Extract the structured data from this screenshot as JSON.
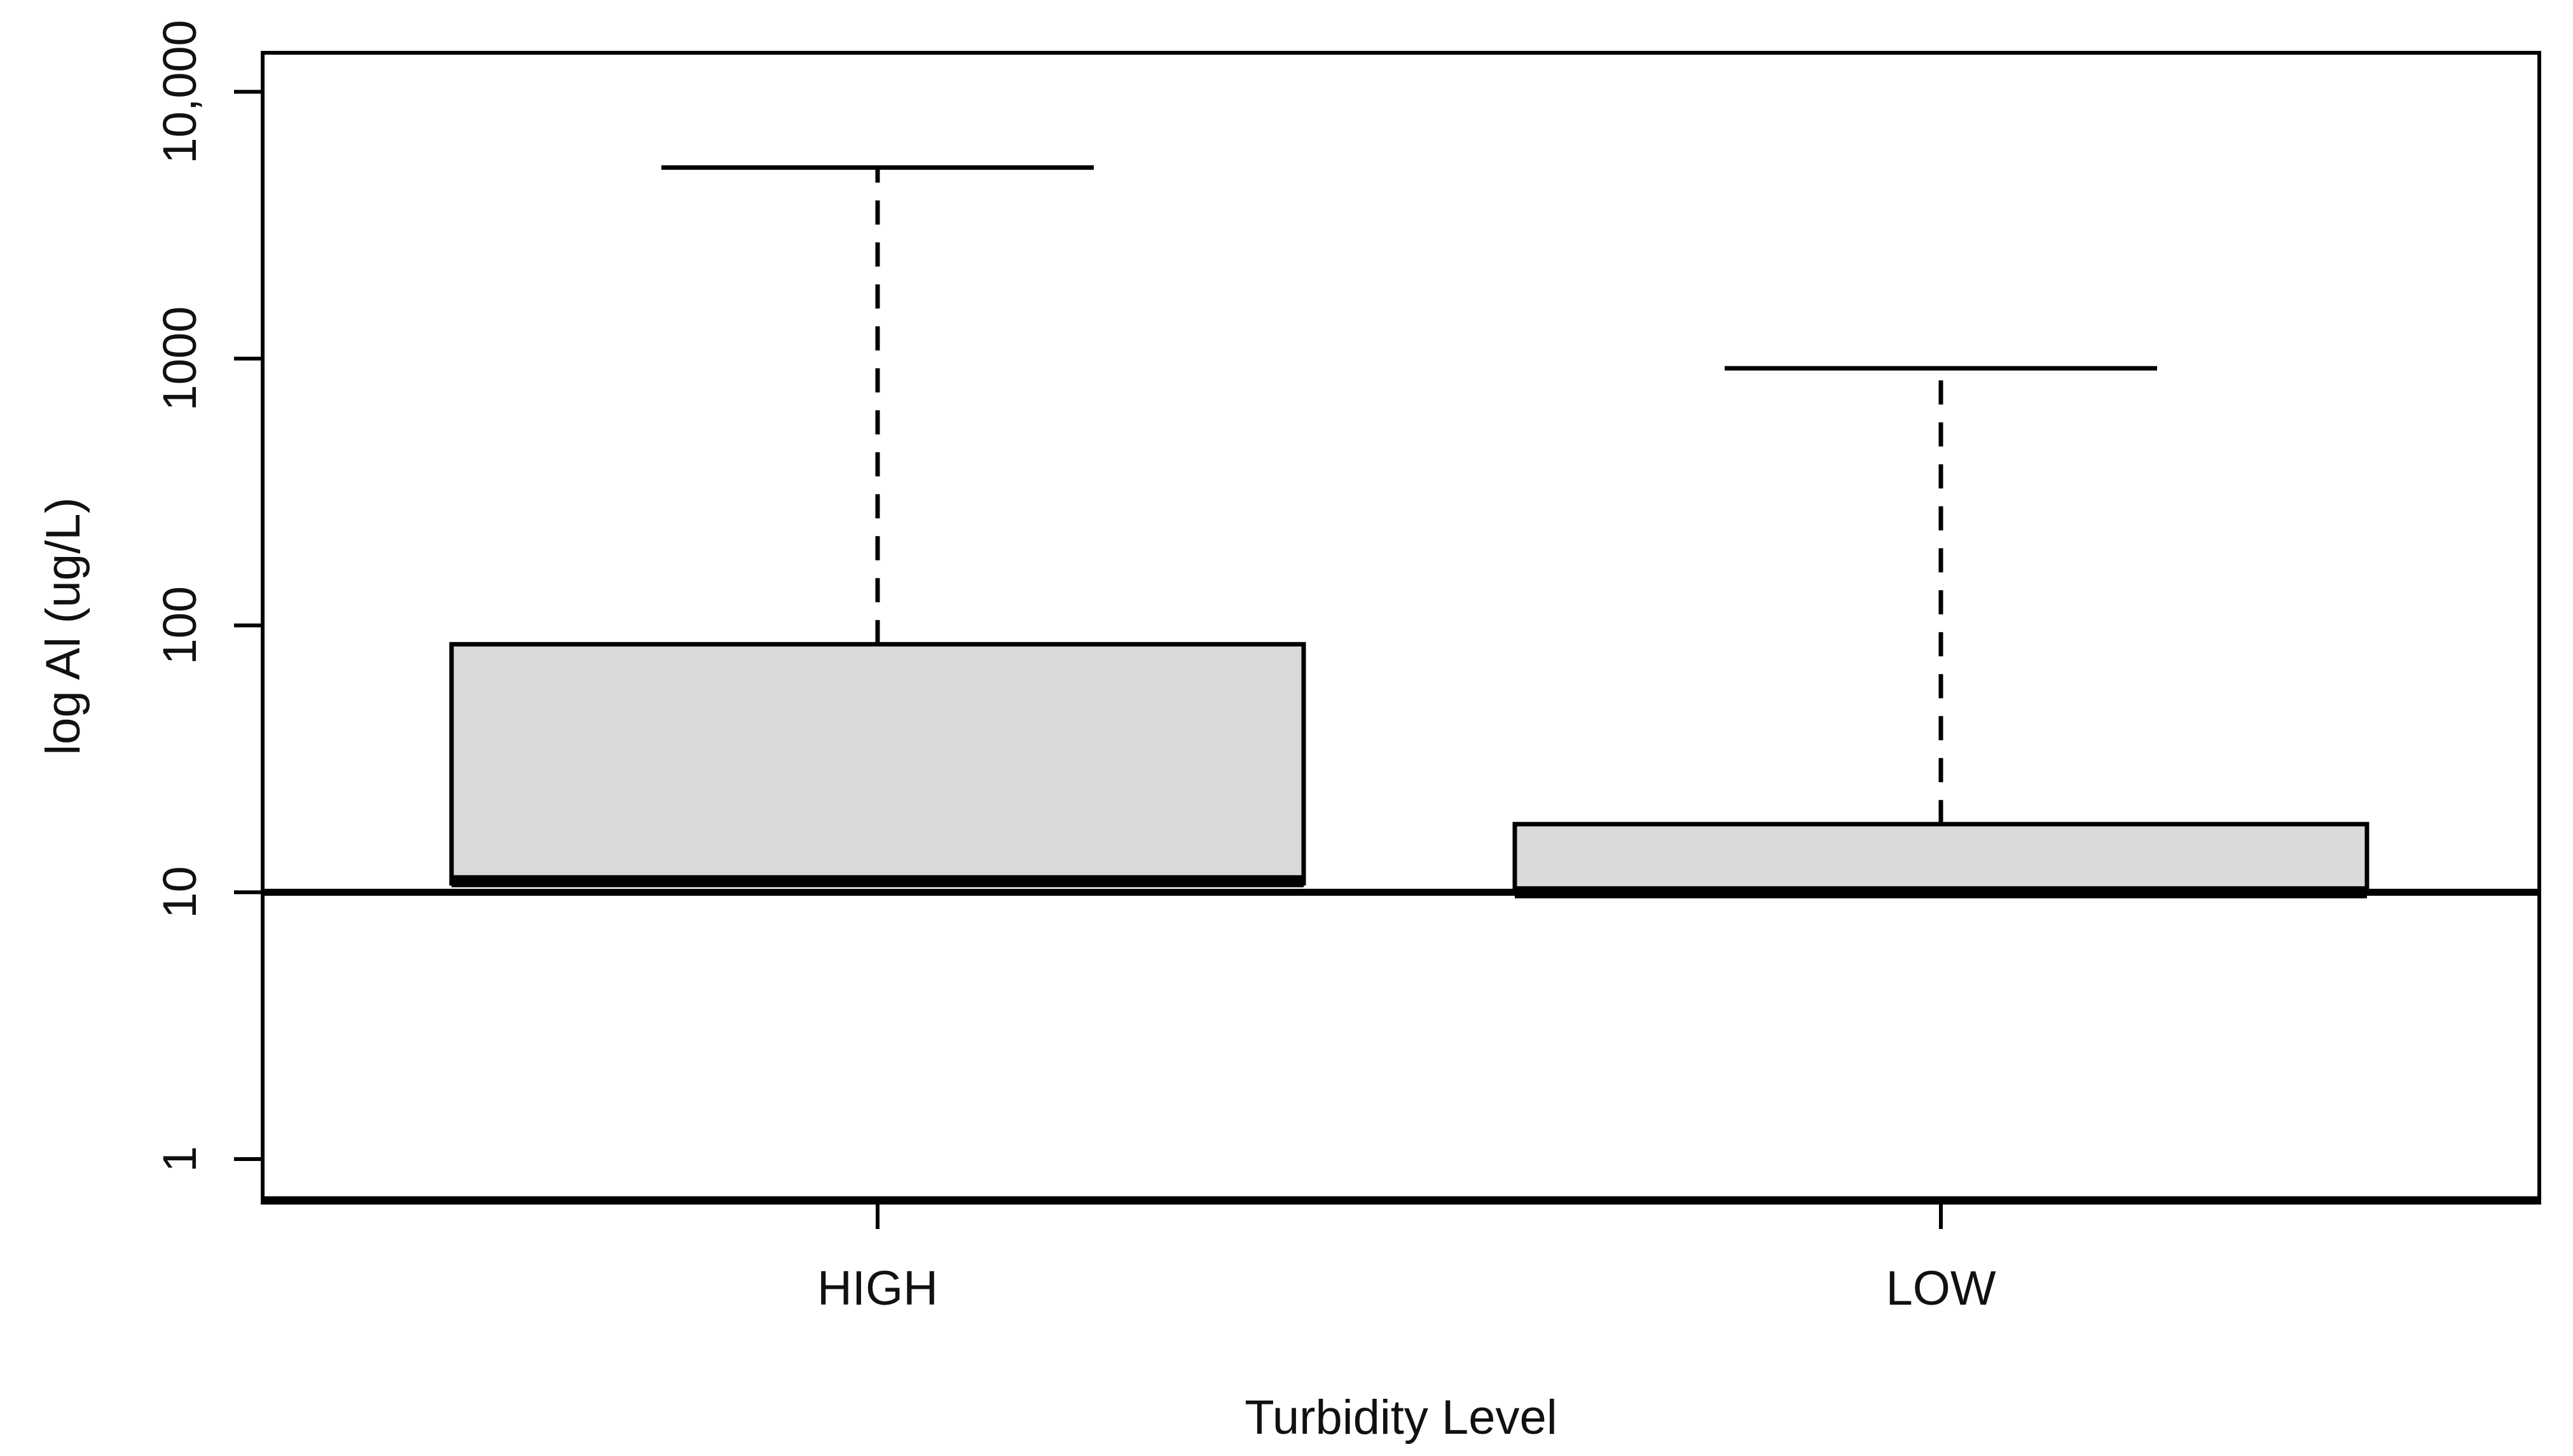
{
  "chart_data": {
    "type": "boxplot",
    "title": "",
    "xlabel": "Turbidity Level",
    "ylabel": "log Al (ug/L)",
    "y_scale": "log10",
    "ylim": [
      0.7,
      14000
    ],
    "y_ticks": [
      {
        "value": 10000,
        "label": "10,000"
      },
      {
        "value": 1000,
        "label": "1000"
      },
      {
        "value": 100,
        "label": "100"
      },
      {
        "value": 10,
        "label": "10"
      },
      {
        "value": 1,
        "label": "1"
      }
    ],
    "categories": [
      "HIGH",
      "LOW"
    ],
    "series": [
      {
        "category": "HIGH",
        "whisker_high": 5200,
        "q3": 85,
        "median": 11,
        "q1": 10.8,
        "whisker_low": null,
        "outliers": []
      },
      {
        "category": "LOW",
        "whisker_high": 920,
        "q3": 18,
        "median": 10,
        "q1": 10,
        "whisker_low": null,
        "outliers": []
      }
    ],
    "reference_line": {
      "value": 10,
      "orientation": "horizontal"
    },
    "legend": null,
    "grid": false,
    "colors": {
      "box_fill": "#d9d9d9",
      "line": "#000000",
      "text": "#111111",
      "background": "#ffffff"
    }
  }
}
